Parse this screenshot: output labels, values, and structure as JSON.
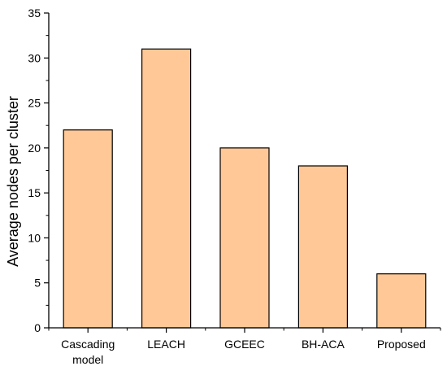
{
  "chart_data": {
    "type": "bar",
    "title": "",
    "xlabel": "",
    "ylabel": "Average nodes per cluster",
    "categories": [
      [
        "Cascading",
        "model"
      ],
      [
        "LEACH"
      ],
      [
        "GCEEC"
      ],
      [
        "BH-ACA"
      ],
      [
        "Proposed"
      ]
    ],
    "values": [
      22,
      31,
      20,
      18,
      6
    ],
    "ylim": [
      0,
      35
    ],
    "yticks": [
      0,
      5,
      10,
      15,
      20,
      25,
      30,
      35
    ],
    "grid": false,
    "legend": "none",
    "colors": {
      "bar_fill": "#FFC896",
      "bar_stroke": "#000000",
      "axis": "#000000"
    }
  }
}
